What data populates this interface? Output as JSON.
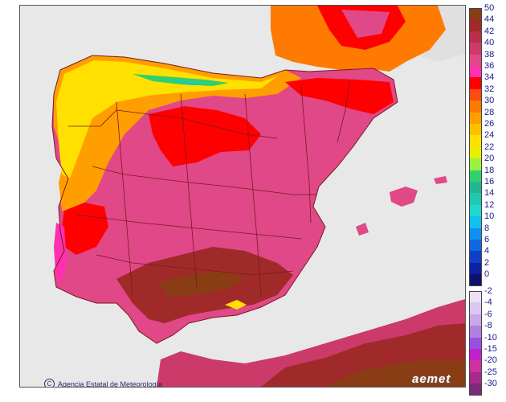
{
  "map": {
    "credit_text": "Agencia Estatal de Meteorología",
    "brand_text": "aemet",
    "credit_icon": "copyright-icon",
    "sea_color": "#e8e8e8",
    "outside_land_color": "#e0e0e0",
    "border_color": "#7a1a1a"
  },
  "legend": {
    "upper": [
      {
        "label": "50",
        "color": "#8a3c14"
      },
      {
        "label": "44",
        "color": "#a02a2a"
      },
      {
        "label": "42",
        "color": "#b8304a"
      },
      {
        "label": "40",
        "color": "#cc3a6a"
      },
      {
        "label": "38",
        "color": "#e04888"
      },
      {
        "label": "36",
        "color": "#ff30b0"
      },
      {
        "label": "34",
        "color": "#ff0000"
      },
      {
        "label": "32",
        "color": "#ff4a10"
      },
      {
        "label": "30",
        "color": "#ff7a00"
      },
      {
        "label": "28",
        "color": "#ff9e00"
      },
      {
        "label": "26",
        "color": "#ffc000"
      },
      {
        "label": "24",
        "color": "#ffe000"
      },
      {
        "label": "22",
        "color": "#e8f000"
      },
      {
        "label": "20",
        "color": "#9cf040"
      },
      {
        "label": "18",
        "color": "#30d070"
      },
      {
        "label": "16",
        "color": "#20b890"
      },
      {
        "label": "14",
        "color": "#20c8b0"
      },
      {
        "label": "12",
        "color": "#20d8d0"
      },
      {
        "label": "10",
        "color": "#10c0f0"
      },
      {
        "label": "8",
        "color": "#1090f0"
      },
      {
        "label": "6",
        "color": "#1068e0"
      },
      {
        "label": "4",
        "color": "#1040c8"
      },
      {
        "label": "2",
        "color": "#1020a0"
      },
      {
        "label": "0",
        "color": "#101070"
      }
    ],
    "lower": [
      {
        "label": "-2",
        "color": "#ece0f4"
      },
      {
        "label": "-4",
        "color": "#dcc8ee"
      },
      {
        "label": "-6",
        "color": "#c8a8e8"
      },
      {
        "label": "-8",
        "color": "#b080e0"
      },
      {
        "label": "-10",
        "color": "#9850e0"
      },
      {
        "label": "-15",
        "color": "#c020d0"
      },
      {
        "label": "-20",
        "color": "#d030a0"
      },
      {
        "label": "-25",
        "color": "#a82a88"
      },
      {
        "label": "-30",
        "color": "#7a2a78"
      }
    ]
  }
}
